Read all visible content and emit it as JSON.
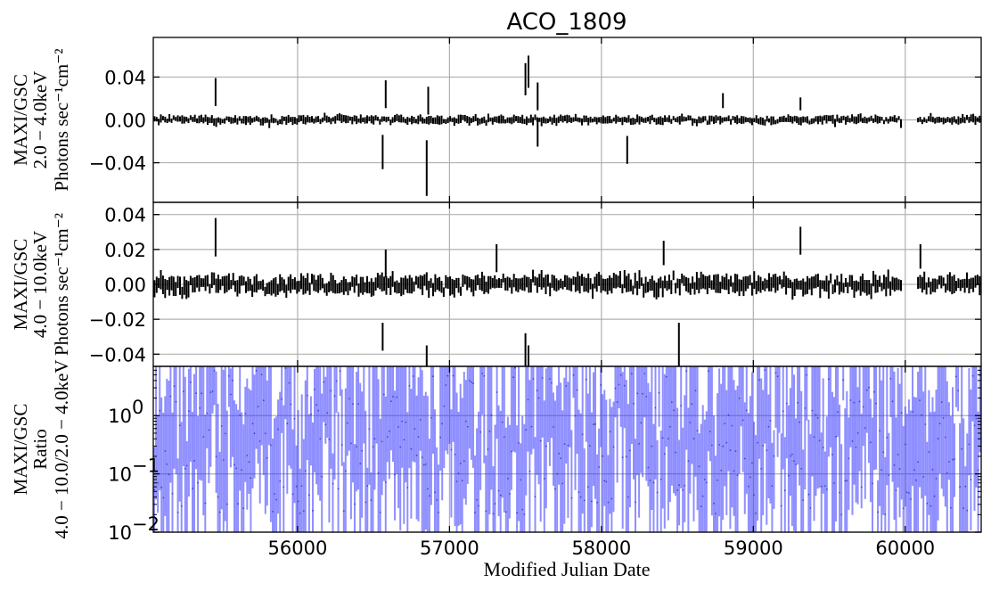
{
  "title": "ACO_1809",
  "xlabel": "Modified Julian Date",
  "colors": {
    "lc": "#000000",
    "ratio": "#3333ff"
  },
  "chart_data": [
    {
      "type": "line",
      "panel": "top",
      "style": "errorbar",
      "ylabel": [
        "MAXI/GSC",
        "2.0 − 4.0keV",
        "Photons sec⁻¹cm⁻²"
      ],
      "xlim": [
        55050,
        60500
      ],
      "ylim": [
        -0.077,
        0.077
      ],
      "yticks": [
        -0.04,
        0.0,
        0.04
      ],
      "yticklabels": [
        "−0.04",
        "0.00",
        "0.04"
      ],
      "grid": true,
      "spikes": [
        [
          55460,
          0.026,
          0.013
        ],
        [
          56560,
          -0.03,
          0.016
        ],
        [
          56580,
          0.024,
          0.013
        ],
        [
          56850,
          -0.045,
          0.026
        ],
        [
          56860,
          0.018,
          0.013
        ],
        [
          57500,
          0.038,
          0.015
        ],
        [
          57520,
          0.045,
          0.015
        ],
        [
          57580,
          -0.012,
          0.013
        ],
        [
          57580,
          0.022,
          0.013
        ],
        [
          58170,
          -0.028,
          0.013
        ],
        [
          58800,
          0.018,
          0.007
        ],
        [
          59310,
          0.015,
          0.006
        ]
      ]
    },
    {
      "type": "line",
      "panel": "middle",
      "style": "errorbar",
      "ylabel": [
        "MAXI/GSC",
        "4.0 − 10.0keV",
        "Photons sec⁻¹cm⁻²"
      ],
      "xlim": [
        55050,
        60500
      ],
      "ylim": [
        -0.047,
        0.047
      ],
      "yticks": [
        -0.04,
        -0.02,
        0.0,
        0.02,
        0.04
      ],
      "yticklabels": [
        "−0.04",
        "−0.02",
        "0.00",
        "0.02",
        "0.04"
      ],
      "grid": true,
      "spikes": [
        [
          55460,
          0.027,
          0.011
        ],
        [
          56560,
          -0.03,
          0.008
        ],
        [
          56580,
          0.012,
          0.008
        ],
        [
          56850,
          -0.045,
          0.01
        ],
        [
          57500,
          -0.038,
          0.01
        ],
        [
          57520,
          -0.045,
          0.01
        ],
        [
          57310,
          0.015,
          0.008
        ],
        [
          58410,
          0.018,
          0.007
        ],
        [
          58510,
          -0.035,
          0.013
        ],
        [
          59310,
          0.025,
          0.008
        ],
        [
          60100,
          0.016,
          0.007
        ]
      ]
    },
    {
      "type": "line",
      "panel": "bottom",
      "style": "ratio-errorbar",
      "yscale": "log",
      "ylabel": [
        "MAXI/GSC",
        "Ratio",
        "4.0 − 10.0/2.0 − 4.0keV"
      ],
      "xlim": [
        55050,
        60500
      ],
      "ylim": [
        0.01,
        7
      ],
      "yticks": [
        0.01,
        0.1,
        1
      ],
      "yticklabels": [
        "10",
        "10",
        "10"
      ],
      "ytickexponents": [
        "−2",
        "−1",
        "0"
      ],
      "xticks": [
        56000,
        57000,
        58000,
        59000,
        60000
      ],
      "xticklabels": [
        "56000",
        "57000",
        "58000",
        "59000",
        "60000"
      ],
      "grid": true
    }
  ]
}
